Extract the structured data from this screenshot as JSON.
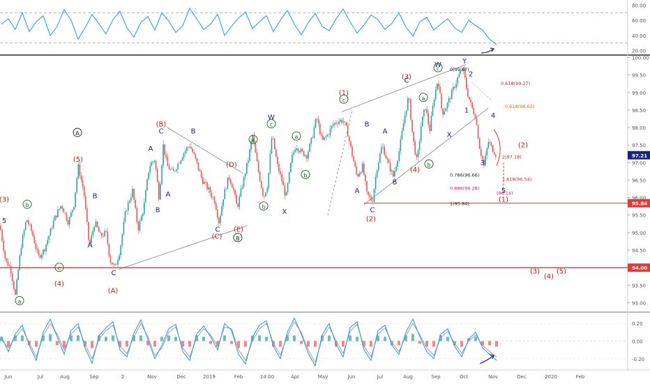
{
  "chart_data": [
    {
      "type": "line",
      "panel": "rsi",
      "y_ticks": [
        "80.00",
        "60.00",
        "40.00",
        "20.00"
      ],
      "ylim": [
        15,
        85
      ],
      "ref_lines": [
        70,
        30
      ],
      "series": [
        {
          "color": "#2196f3",
          "values": [
            55,
            62,
            48,
            70,
            45,
            58,
            66,
            40,
            52,
            74,
            60,
            35,
            50,
            68,
            55,
            42,
            61,
            72,
            50,
            38,
            57,
            65,
            47,
            70,
            59,
            44,
            53,
            76,
            62,
            48,
            55,
            68,
            40,
            52,
            63,
            71,
            49,
            58,
            66,
            45,
            60,
            73,
            55,
            41,
            57,
            69,
            52,
            46,
            62,
            75,
            58,
            43,
            54,
            67,
            61,
            48,
            56,
            70,
            51,
            39,
            58,
            64,
            47,
            55,
            62,
            50,
            44,
            60,
            53,
            47,
            35,
            28
          ]
        }
      ]
    },
    {
      "type": "candlestick",
      "panel": "price",
      "x_ticks": [
        "Jun",
        "Jul",
        "Aug",
        "Sep",
        "2",
        "Nov",
        "Dec",
        "2019",
        "Feb",
        "14:00",
        "Apr",
        "May",
        "Jun",
        "Jul",
        "Aug",
        "Sep",
        "Oct",
        "Nov",
        "Dec",
        "2020",
        "Feb"
      ],
      "y_ticks": [
        "100.00",
        "99.50",
        "99.00",
        "98.50",
        "98.00",
        "97.50",
        "97.00",
        "96.50",
        "96.00",
        "95.50",
        "95.00",
        "94.50",
        "94.00",
        "93.50",
        "93.00"
      ],
      "ylim": [
        92.75,
        100.05
      ],
      "hlines": [
        {
          "value": 95.84,
          "tag": "95.84"
        },
        {
          "value": 94.0,
          "tag": "94.00"
        }
      ],
      "last_price": {
        "value": 97.21,
        "tag": "97.21"
      },
      "close_path": [
        [
          0,
          95.2
        ],
        [
          8,
          94.2
        ],
        [
          15,
          94.0
        ],
        [
          22,
          93.2
        ],
        [
          30,
          94.6
        ],
        [
          38,
          95.4
        ],
        [
          46,
          95.0
        ],
        [
          55,
          94.3
        ],
        [
          63,
          94.5
        ],
        [
          70,
          94.9
        ],
        [
          78,
          95.4
        ],
        [
          88,
          95.8
        ],
        [
          98,
          95.3
        ],
        [
          106,
          95.8
        ],
        [
          112,
          96.9
        ],
        [
          120,
          96.2
        ],
        [
          128,
          94.6
        ],
        [
          136,
          95.3
        ],
        [
          144,
          94.9
        ],
        [
          152,
          95.0
        ],
        [
          158,
          94.2
        ],
        [
          165,
          94.0
        ],
        [
          172,
          94.5
        ],
        [
          180,
          95.6
        ],
        [
          190,
          96.2
        ],
        [
          198,
          95.1
        ],
        [
          206,
          95.7
        ],
        [
          214,
          96.9
        ],
        [
          222,
          97.1
        ],
        [
          228,
          96.0
        ],
        [
          234,
          97.5
        ],
        [
          240,
          96.9
        ],
        [
          248,
          96.7
        ],
        [
          256,
          97.0
        ],
        [
          264,
          97.3
        ],
        [
          272,
          97.5
        ],
        [
          280,
          97.1
        ],
        [
          290,
          96.5
        ],
        [
          300,
          96.2
        ],
        [
          308,
          95.9
        ],
        [
          314,
          95.3
        ],
        [
          320,
          96.0
        ],
        [
          328,
          96.6
        ],
        [
          334,
          96.3
        ],
        [
          340,
          95.7
        ],
        [
          348,
          96.4
        ],
        [
          356,
          97.1
        ],
        [
          362,
          97.8
        ],
        [
          370,
          96.8
        ],
        [
          378,
          96.0
        ],
        [
          384,
          96.4
        ],
        [
          390,
          97.8
        ],
        [
          398,
          96.9
        ],
        [
          404,
          96.5
        ],
        [
          410,
          96.0
        ],
        [
          418,
          97.1
        ],
        [
          424,
          97.5
        ],
        [
          432,
          97.3
        ],
        [
          440,
          97.2
        ],
        [
          446,
          97.6
        ],
        [
          454,
          98.3
        ],
        [
          462,
          97.6
        ],
        [
          470,
          97.8
        ],
        [
          478,
          98.1
        ],
        [
          486,
          98.2
        ],
        [
          492,
          98.2
        ],
        [
          498,
          97.9
        ],
        [
          504,
          97.3
        ],
        [
          512,
          96.6
        ],
        [
          520,
          96.9
        ],
        [
          526,
          96.1
        ],
        [
          534,
          95.9
        ],
        [
          540,
          96.8
        ],
        [
          548,
          97.5
        ],
        [
          556,
          97.0
        ],
        [
          564,
          96.6
        ],
        [
          572,
          97.3
        ],
        [
          580,
          98.3
        ],
        [
          586,
          98.9
        ],
        [
          592,
          97.7
        ],
        [
          598,
          97.0
        ],
        [
          604,
          98.1
        ],
        [
          610,
          98.6
        ],
        [
          616,
          97.9
        ],
        [
          622,
          98.8
        ],
        [
          628,
          99.4
        ],
        [
          634,
          98.4
        ],
        [
          640,
          98.6
        ],
        [
          646,
          98.9
        ],
        [
          652,
          99.2
        ],
        [
          658,
          99.5
        ],
        [
          664,
          99.7
        ],
        [
          670,
          99.0
        ],
        [
          676,
          98.6
        ],
        [
          682,
          98.3
        ],
        [
          688,
          97.4
        ],
        [
          694,
          96.9
        ],
        [
          700,
          97.6
        ],
        [
          706,
          97.4
        ],
        [
          712,
          97.2
        ]
      ]
    },
    {
      "type": "line",
      "panel": "oscillator",
      "y_ticks": [
        "0.20",
        "0.00",
        "-0.20"
      ],
      "ylim": [
        -0.32,
        0.32
      ],
      "series": [
        {
          "color": "#2196f3",
          "values": [
            0.05,
            -0.12,
            0.08,
            0.18,
            -0.05,
            -0.22,
            0.1,
            0.25,
            0.05,
            -0.15,
            0.12,
            0.2,
            -0.08,
            -0.25,
            0.06,
            0.15,
            0.22,
            -0.1,
            -0.18,
            0.09,
            0.24,
            0.02,
            -0.2,
            -0.05,
            0.14,
            0.19,
            -0.12,
            -0.22,
            0.08,
            0.17,
            0.05,
            -0.1,
            0.2,
            0.12,
            -0.15,
            -0.26,
            0.04,
            0.18,
            0.23,
            -0.06,
            -0.2,
            0.1,
            0.26,
            0.08,
            -0.14,
            -0.28,
            0.07,
            0.2,
            -0.04,
            -0.18,
            0.15,
            0.22,
            -0.1,
            -0.22,
            0.12,
            0.18,
            -0.05,
            -0.15,
            0.1,
            0.25,
            0.05,
            -0.12,
            -0.2,
            0.08,
            0.14,
            -0.06,
            -0.18,
            0.02,
            0.1,
            -0.08,
            -0.15,
            -0.22
          ]
        },
        {
          "color": "#9e9e9e",
          "values": [
            0.02,
            -0.08,
            0.04,
            0.14,
            -0.02,
            -0.18,
            0.06,
            0.2,
            0.08,
            -0.1,
            0.08,
            0.16,
            -0.04,
            -0.2,
            0.02,
            0.12,
            0.18,
            -0.06,
            -0.14,
            0.05,
            0.2,
            0.05,
            -0.16,
            -0.08,
            0.1,
            0.16,
            -0.08,
            -0.18,
            0.04,
            0.14,
            0.07,
            -0.06,
            0.16,
            0.14,
            -0.1,
            -0.22,
            0.0,
            0.14,
            0.2,
            -0.02,
            -0.16,
            0.06,
            0.22,
            0.1,
            -0.1,
            -0.24,
            0.03,
            0.16,
            0.0,
            -0.14,
            0.11,
            0.19,
            -0.06,
            -0.18,
            0.08,
            0.15,
            -0.02,
            -0.12,
            0.06,
            0.2,
            0.07,
            -0.08,
            -0.16,
            0.04,
            0.11,
            -0.03,
            -0.14,
            0.0,
            0.07,
            -0.05,
            -0.12,
            -0.18
          ]
        }
      ]
    }
  ],
  "wave_labels": [
    {
      "text": "(3)",
      "price": 95.9,
      "color": "#b71c1c"
    },
    {
      "text": "5",
      "price": 95.3,
      "color": "#1a237e"
    },
    {
      "text": "b",
      "price": 95.75,
      "color": "#1b5e20",
      "circled": true
    },
    {
      "text": "(4)",
      "price": 93.5,
      "color": "#b71c1c"
    },
    {
      "text": "a",
      "price": 93.0,
      "color": "#1b5e20",
      "circled": true
    },
    {
      "text": "c",
      "price": 93.95,
      "color": "#1b5e20",
      "circled": true
    },
    {
      "text": "(5)",
      "price": 97.05,
      "color": "#b71c1c"
    },
    {
      "text": "A",
      "price": 97.8,
      "color": "#212121",
      "circled": true
    },
    {
      "text": "B",
      "price": 96.0,
      "color": "#1a237e"
    },
    {
      "text": "A",
      "price": 94.6,
      "color": "#1a237e"
    },
    {
      "text": "C",
      "price": 93.8,
      "color": "#1a237e"
    },
    {
      "text": "(A)",
      "price": 93.3,
      "color": "#b71c1c"
    },
    {
      "text": "A",
      "price": 97.35,
      "color": "#1a237e"
    },
    {
      "text": "B",
      "price": 95.6,
      "color": "#1a237e"
    },
    {
      "text": "(B)",
      "price": 98.05,
      "color": "#b71c1c"
    },
    {
      "text": "C",
      "price": 97.85,
      "color": "#1a237e"
    },
    {
      "text": "A",
      "price": 96.05,
      "color": "#1a237e"
    },
    {
      "text": "B",
      "price": 97.85,
      "color": "#1a237e"
    },
    {
      "text": "C",
      "price": 95.05,
      "color": "#1a237e"
    },
    {
      "text": "(C)",
      "price": 94.85,
      "color": "#b71c1c"
    },
    {
      "text": "(D)",
      "price": 96.9,
      "color": "#b71c1c"
    },
    {
      "text": "(E)",
      "price": 95.05,
      "color": "#b71c1c"
    },
    {
      "text": "B",
      "price": 94.8,
      "color": "#212121",
      "circled": true
    },
    {
      "text": "a",
      "price": 97.6,
      "color": "#1b5e20",
      "circled": true
    },
    {
      "text": "b",
      "price": 95.7,
      "color": "#1b5e20",
      "circled": true
    },
    {
      "text": "W",
      "price": 98.25,
      "color": "#1a237e"
    },
    {
      "text": "c",
      "price": 98.05,
      "color": "#1b5e20",
      "circled": true
    },
    {
      "text": "X",
      "price": 95.55,
      "color": "#1a237e"
    },
    {
      "text": "a",
      "price": 97.7,
      "color": "#1b5e20",
      "circled": true
    },
    {
      "text": "b",
      "price": 96.6,
      "color": "#1b5e20",
      "circled": true
    },
    {
      "text": "(1)",
      "price": 98.95,
      "color": "#b71c1c"
    },
    {
      "text": "c",
      "price": 98.75,
      "color": "#1b5e20",
      "circled": true
    },
    {
      "text": "A",
      "price": 96.15,
      "color": "#1a237e"
    },
    {
      "text": "C",
      "price": 95.6,
      "color": "#1a237e"
    },
    {
      "text": "(2)",
      "price": 95.35,
      "color": "#b71c1c"
    },
    {
      "text": "B",
      "price": 98.05,
      "color": "#1a237e"
    },
    {
      "text": "A",
      "price": 97.85,
      "color": "#1a237e"
    },
    {
      "text": "B",
      "price": 96.4,
      "color": "#1a237e"
    },
    {
      "text": "(3)",
      "price": 99.4,
      "color": "#b71c1c"
    },
    {
      "text": "C",
      "price": 99.3,
      "color": "#1a237e"
    },
    {
      "text": "(4)",
      "price": 96.75,
      "color": "#b71c1c"
    },
    {
      "text": "a",
      "price": 98.8,
      "color": "#1b5e20",
      "circled": true
    },
    {
      "text": "b",
      "price": 96.9,
      "color": "#1b5e20",
      "circled": true
    },
    {
      "text": "W",
      "price": 99.75,
      "color": "#1a237e"
    },
    {
      "text": "c",
      "price": 99.65,
      "color": "#1b5e20",
      "circled": true
    },
    {
      "text": "X",
      "price": 97.75,
      "color": "#1a237e"
    },
    {
      "text": "Y",
      "price": 99.85,
      "color": "#1a237e"
    },
    {
      "text": "2",
      "price": 99.48,
      "color": "#1a237e"
    },
    {
      "text": "1",
      "price": 98.45,
      "color": "#1a237e"
    },
    {
      "text": "3",
      "price": 96.95,
      "color": "#1a237e"
    },
    {
      "text": "4",
      "price": 98.3,
      "color": "#1a237e"
    },
    {
      "text": "5",
      "price": 96.15,
      "color": "#1a237e"
    },
    {
      "text": "(1)",
      "price": 95.9,
      "color": "#b71c1c"
    },
    {
      "text": "(2)",
      "price": 97.45,
      "color": "#b71c1c"
    },
    {
      "text": "(3)",
      "price": 93.85,
      "color": "#b71c1c"
    },
    {
      "text": "(4)",
      "price": 93.7,
      "color": "#b71c1c"
    },
    {
      "text": "(5)",
      "price": 93.85,
      "color": "#b71c1c"
    }
  ],
  "fib_labels": [
    {
      "text": "0(99.67)",
      "price": 99.67,
      "color": "#212121"
    },
    {
      "text": "0.618(99.27)",
      "price": 99.27,
      "color": "#c62828"
    },
    {
      "text": "0.618(98.62)",
      "price": 98.62,
      "color": "#ef6c00"
    },
    {
      "text": "2(97.18)",
      "price": 97.18,
      "color": "#c62828"
    },
    {
      "text": "0.786(96.66)",
      "price": 96.66,
      "color": "#212121"
    },
    {
      "text": "1.618(96.54)",
      "price": 96.54,
      "color": "#c62828"
    },
    {
      "text": "0.886(96.28)",
      "price": 96.28,
      "color": "#d81b60"
    },
    {
      "text": "(96.14)",
      "price": 96.14,
      "color": "#d81b60"
    },
    {
      "text": "1(95.84)",
      "price": 95.84,
      "color": "#212121"
    }
  ]
}
